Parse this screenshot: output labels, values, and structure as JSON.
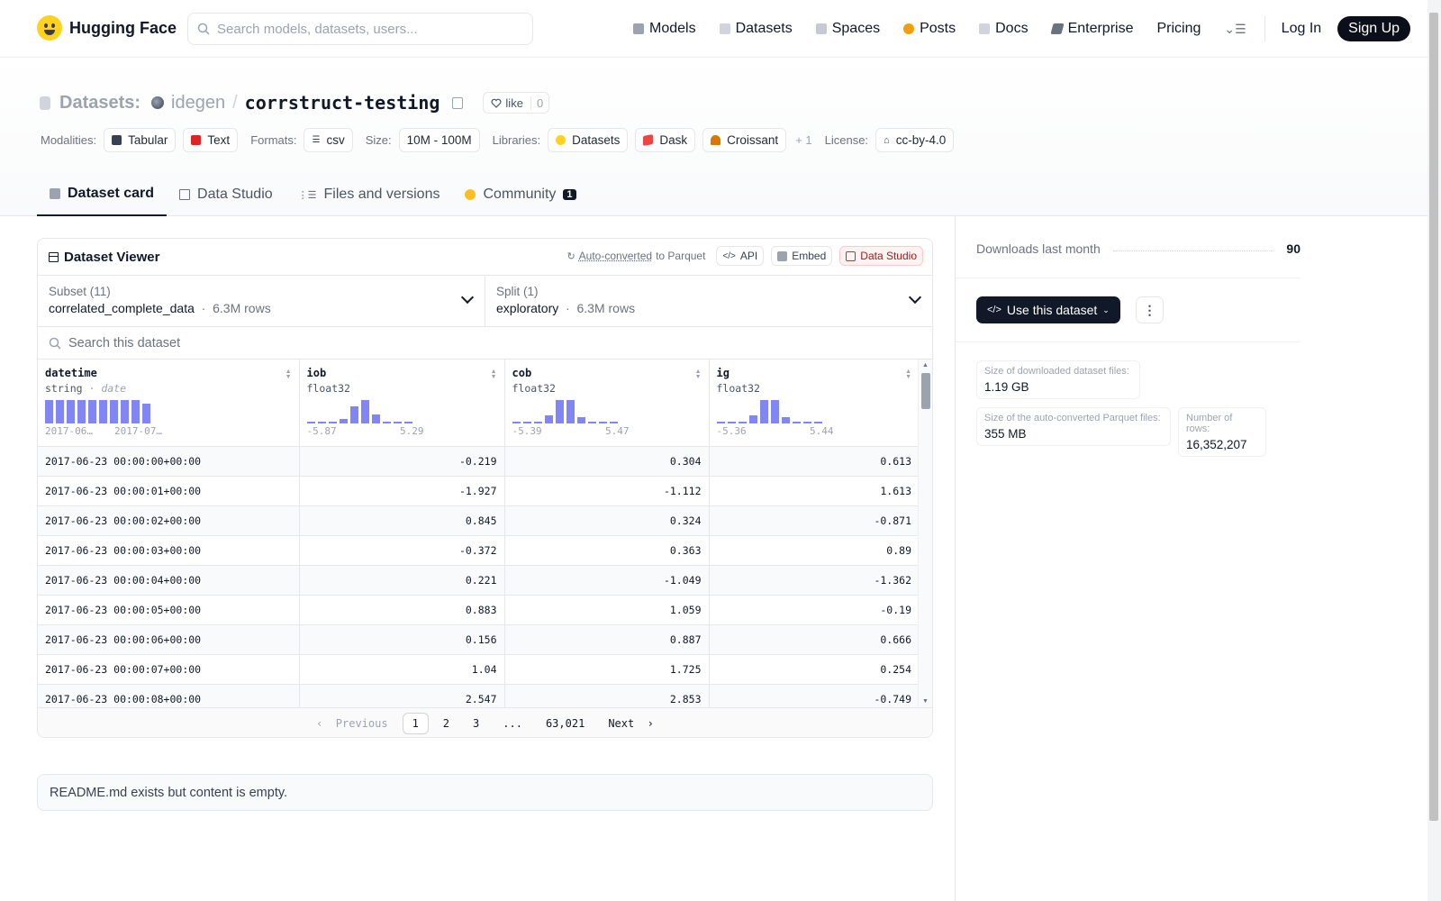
{
  "nav": {
    "brand": "Hugging Face",
    "search_placeholder": "Search models, datasets, users...",
    "links": [
      "Models",
      "Datasets",
      "Spaces",
      "Posts",
      "Docs",
      "Enterprise",
      "Pricing"
    ],
    "login": "Log In",
    "signup": "Sign Up"
  },
  "header": {
    "crumb_label": "Datasets:",
    "owner": "idegen",
    "repo": "corrstruct-testing",
    "like_label": "like",
    "like_count": "0",
    "modalities_label": "Modalities:",
    "modalities": [
      "Tabular",
      "Text"
    ],
    "formats_label": "Formats:",
    "format": "csv",
    "size_label": "Size:",
    "size": "10M - 100M",
    "libraries_label": "Libraries:",
    "libraries": [
      "Datasets",
      "Dask",
      "Croissant"
    ],
    "libraries_more": "+ 1",
    "license_label": "License:",
    "license": "cc-by-4.0"
  },
  "tabs": [
    {
      "label": "Dataset card"
    },
    {
      "label": "Data Studio"
    },
    {
      "label": "Files and versions"
    },
    {
      "label": "Community",
      "badge": "1"
    }
  ],
  "viewer": {
    "title": "Dataset Viewer",
    "autoconv_link": "Auto-converted",
    "autoconv_rest": "to Parquet",
    "api_label": "API",
    "embed_label": "Embed",
    "studio_label": "Data Studio",
    "subset_label": "Subset (11)",
    "subset_value": "correlated_complete_data",
    "subset_rows": "6.3M rows",
    "split_label": "Split (1)",
    "split_value": "exploratory",
    "split_rows": "6.3M rows",
    "search_placeholder": "Search this dataset",
    "columns": [
      {
        "name": "datetime",
        "type": "string",
        "subtype": "date",
        "min": "2017-06…",
        "max": "2017-07…",
        "hist": [
          1,
          1,
          1,
          1,
          1,
          1,
          1,
          1,
          1,
          0.85
        ]
      },
      {
        "name": "iob",
        "type": "float32",
        "subtype": "",
        "min": "-5.87",
        "max": "5.29",
        "hist": [
          0.04,
          0.04,
          0.04,
          0.18,
          0.72,
          1,
          0.38,
          0.06,
          0.04,
          0.04
        ]
      },
      {
        "name": "cob",
        "type": "float32",
        "subtype": "",
        "min": "-5.39",
        "max": "5.47",
        "hist": [
          0.04,
          0.04,
          0.04,
          0.34,
          1,
          1,
          0.28,
          0.04,
          0.04,
          0.04
        ]
      },
      {
        "name": "ig",
        "type": "float32",
        "subtype": "",
        "min": "-5.36",
        "max": "5.44",
        "hist": [
          0.04,
          0.04,
          0.04,
          0.34,
          1,
          1,
          0.28,
          0.04,
          0.04,
          0.04
        ]
      }
    ],
    "rows": [
      [
        "2017-06-23 00:00:00+00:00",
        "-0.219",
        "0.304",
        "0.613"
      ],
      [
        "2017-06-23 00:00:01+00:00",
        "-1.927",
        "-1.112",
        "1.613"
      ],
      [
        "2017-06-23 00:00:02+00:00",
        "0.845",
        "0.324",
        "-0.871"
      ],
      [
        "2017-06-23 00:00:03+00:00",
        "-0.372",
        "0.363",
        "0.89"
      ],
      [
        "2017-06-23 00:00:04+00:00",
        "0.221",
        "-1.049",
        "-1.362"
      ],
      [
        "2017-06-23 00:00:05+00:00",
        "0.883",
        "1.059",
        "-0.19"
      ],
      [
        "2017-06-23 00:00:06+00:00",
        "0.156",
        "0.887",
        "0.666"
      ],
      [
        "2017-06-23 00:00:07+00:00",
        "1.04",
        "1.725",
        "0.254"
      ],
      [
        "2017-06-23 00:00:08+00:00",
        "2.547",
        "2.853",
        "-0.749"
      ]
    ],
    "pager": {
      "prev": "Previous",
      "pages": [
        "1",
        "2",
        "3",
        "...",
        "63,021"
      ],
      "current": "1",
      "next": "Next"
    }
  },
  "readme_notice": "README.md exists but content is empty.",
  "sidebar": {
    "downloads_label": "Downloads last month",
    "downloads_value": "90",
    "use_button": "Use this dataset",
    "stats": [
      {
        "label": "Size of downloaded dataset files:",
        "value": "1.19 GB"
      },
      {
        "label": "Size of the auto-converted Parquet files:",
        "value": "355 MB"
      },
      {
        "label": "Number of rows:",
        "value": "16,352,207"
      }
    ]
  },
  "colors": {
    "accent_bar": "#6366f1",
    "dark_button": "#111827",
    "brand_yellow": "#ffd21e"
  }
}
